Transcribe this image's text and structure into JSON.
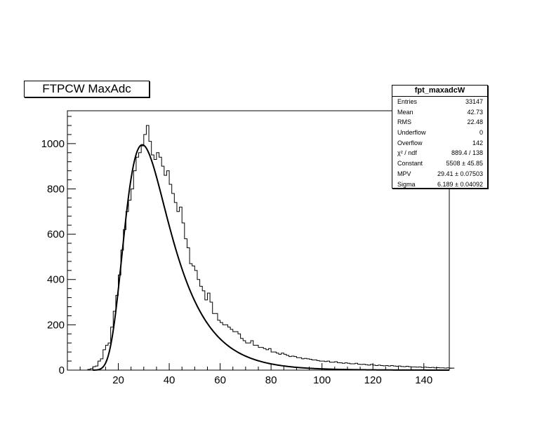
{
  "chart_data": {
    "type": "histogram",
    "title": "FTPCW MaxAdc",
    "xlabel": "",
    "ylabel": "",
    "xlim": [
      0,
      150
    ],
    "ylim": [
      0,
      1145
    ],
    "grid": false,
    "x_ticks": [
      20,
      40,
      60,
      80,
      100,
      120,
      140
    ],
    "y_ticks": [
      0,
      200,
      400,
      600,
      800,
      1000
    ],
    "series": [
      {
        "kind": "histogram",
        "bin_width": 1,
        "bins_start": 7,
        "values": [
          0,
          3,
          6,
          15,
          18,
          40,
          50,
          90,
          110,
          120,
          190,
          260,
          330,
          420,
          530,
          620,
          700,
          750,
          800,
          880,
          940,
          960,
          990,
          1040,
          1080,
          1010,
          950,
          930,
          960,
          940,
          900,
          860,
          880,
          820,
          780,
          740,
          700,
          720,
          650,
          580,
          540,
          470,
          460,
          440,
          400,
          370,
          350,
          310,
          340,
          300,
          250,
          250,
          220,
          210,
          200,
          200,
          190,
          180,
          170,
          170,
          160,
          140,
          130,
          120,
          120,
          130,
          110,
          110,
          100,
          100,
          95,
          90,
          95,
          80,
          80,
          75,
          70,
          75,
          70,
          65,
          60,
          62,
          60,
          55,
          55,
          50,
          52,
          50,
          48,
          45,
          45,
          42,
          40,
          40,
          38,
          40,
          35,
          35,
          37,
          33,
          32,
          30,
          32,
          30,
          28,
          28,
          30,
          26,
          25,
          26,
          24,
          22,
          25,
          22,
          20,
          22,
          20,
          19,
          20,
          18,
          20,
          18,
          17,
          18,
          16,
          15,
          17,
          15,
          14,
          14,
          13,
          14,
          12,
          13,
          12,
          11,
          12,
          10,
          11,
          10,
          10,
          9,
          10,
          9,
          8,
          9
        ]
      },
      {
        "kind": "fit",
        "function": "landau",
        "constant": 5508,
        "mpv": 29.41,
        "sigma": 6.189
      }
    ]
  },
  "stats": {
    "title": "fpt_maxadcW",
    "rows": [
      {
        "label": "Entries",
        "value": "33147"
      },
      {
        "label": "Mean",
        "value": "42.73"
      },
      {
        "label": "RMS",
        "value": "22.48"
      },
      {
        "label": "Underflow",
        "value": "0"
      },
      {
        "label": "Overflow",
        "value": "142"
      },
      {
        "label": "χ² / ndf",
        "value": "889.4 / 138"
      },
      {
        "label": "Constant",
        "value": "5508 ± 45.85"
      },
      {
        "label": "MPV",
        "value": "29.41 ± 0.07503"
      },
      {
        "label": "Sigma",
        "value": "6.189 ± 0.04092"
      }
    ]
  }
}
